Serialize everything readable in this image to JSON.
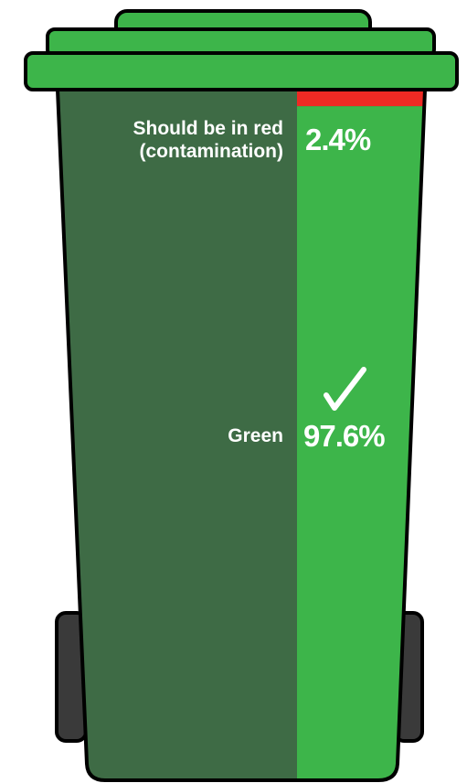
{
  "chart_data": {
    "type": "stacked-bar",
    "series": [
      {
        "name": "Should be in red (contamination)",
        "color": "#ee2a24",
        "values": [
          2.4
        ],
        "value_labels": [
          "2.4%"
        ]
      },
      {
        "name": "Green",
        "color": "#3db54a",
        "values": [
          97.6
        ],
        "value_labels": [
          "97.6%"
        ]
      }
    ]
  }
}
